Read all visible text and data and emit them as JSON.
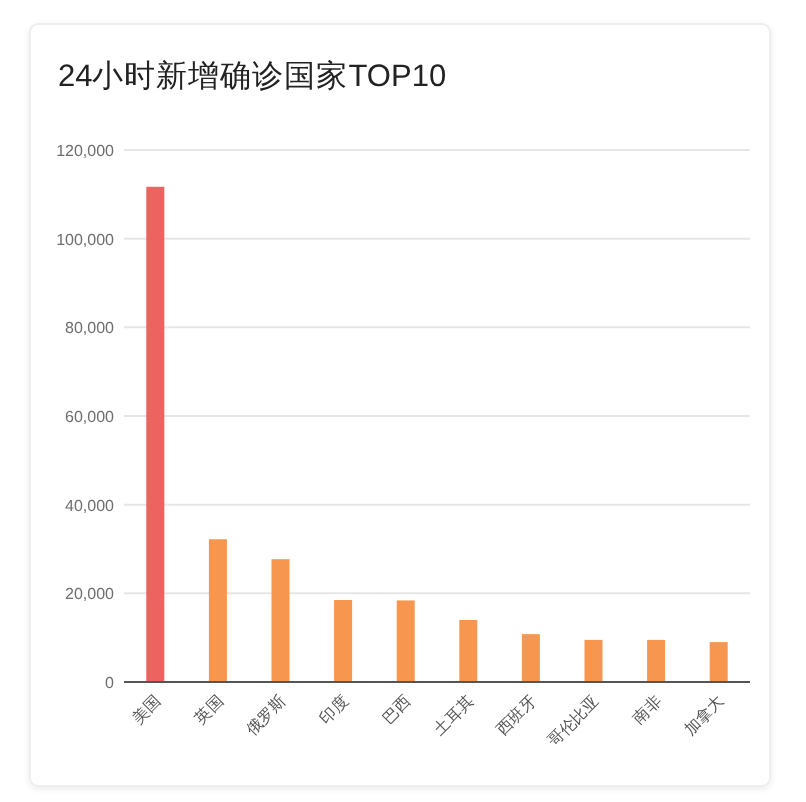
{
  "chart_data": {
    "type": "bar",
    "title": "24小时新增确诊国家TOP10",
    "categories": [
      "美国",
      "英国",
      "俄罗斯",
      "印度",
      "巴西",
      "土耳其",
      "西班牙",
      "哥伦比亚",
      "南非",
      "加拿大"
    ],
    "values": [
      111700,
      32200,
      27700,
      18500,
      18400,
      14000,
      10800,
      9500,
      9500,
      9000
    ],
    "colors": [
      "#ec6360",
      "#f7964f",
      "#f7964f",
      "#f7964f",
      "#f7964f",
      "#f7964f",
      "#f7964f",
      "#f7964f",
      "#f7964f",
      "#f7964f"
    ],
    "ylim": [
      0,
      120000
    ],
    "yticks": [
      0,
      {
        "value": 20000,
        "label": "20,000"
      },
      {
        "value": 40000,
        "label": "40,000"
      },
      {
        "value": 60000,
        "label": "60,000"
      },
      {
        "value": 80000,
        "label": "80,000"
      },
      {
        "value": 100000,
        "label": "100,000"
      },
      {
        "value": 120000,
        "label": "120,000"
      }
    ],
    "grid": "y"
  }
}
